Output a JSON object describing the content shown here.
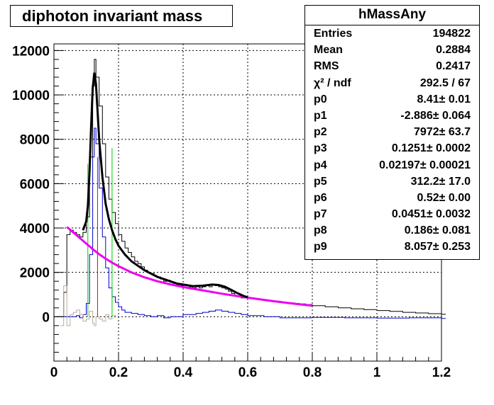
{
  "chart_data": {
    "type": "histogram",
    "title": "diphoton invariant mass",
    "xlim": [
      0,
      1.2
    ],
    "ylim": [
      -2000,
      12300
    ],
    "x_ticks": [
      {
        "v": 0,
        "label": "0"
      },
      {
        "v": 0.2,
        "label": "0.2"
      },
      {
        "v": 0.4,
        "label": "0.4"
      },
      {
        "v": 0.6,
        "label": "0.6"
      },
      {
        "v": 0.8,
        "label": "0.8"
      },
      {
        "v": 1.0,
        "label": "1"
      },
      {
        "v": 1.2,
        "label": "1.2"
      }
    ],
    "y_ticks": [
      {
        "v": 0,
        "label": "0"
      },
      {
        "v": 2000,
        "label": "2000"
      },
      {
        "v": 4000,
        "label": "4000"
      },
      {
        "v": 6000,
        "label": "6000"
      },
      {
        "v": 8000,
        "label": "8000"
      },
      {
        "v": 10000,
        "label": "10000"
      },
      {
        "v": 12000,
        "label": "12000"
      }
    ],
    "grid": true,
    "series": [
      {
        "id": "data-hist",
        "kind": "step",
        "color": "#000000",
        "points": [
          [
            0.01,
            0
          ],
          [
            0.02,
            0
          ],
          [
            0.03,
            1100
          ],
          [
            0.04,
            3700
          ],
          [
            0.05,
            3900
          ],
          [
            0.06,
            3800
          ],
          [
            0.07,
            3700
          ],
          [
            0.08,
            3600
          ],
          [
            0.09,
            3800
          ],
          [
            0.1,
            4500
          ],
          [
            0.11,
            7200
          ],
          [
            0.12,
            10400
          ],
          [
            0.125,
            11600
          ],
          [
            0.13,
            10800
          ],
          [
            0.14,
            9500
          ],
          [
            0.15,
            7800
          ],
          [
            0.16,
            6300
          ],
          [
            0.17,
            5300
          ],
          [
            0.18,
            4700
          ],
          [
            0.19,
            4200
          ],
          [
            0.2,
            3700
          ],
          [
            0.21,
            3400
          ],
          [
            0.22,
            3100
          ],
          [
            0.23,
            2900
          ],
          [
            0.24,
            2700
          ],
          [
            0.25,
            2500
          ],
          [
            0.26,
            2400
          ],
          [
            0.27,
            2250
          ],
          [
            0.28,
            2100
          ],
          [
            0.29,
            2000
          ],
          [
            0.3,
            1950
          ],
          [
            0.31,
            1850
          ],
          [
            0.32,
            1800
          ],
          [
            0.33,
            1700
          ],
          [
            0.34,
            1600
          ],
          [
            0.35,
            1650
          ],
          [
            0.36,
            1550
          ],
          [
            0.37,
            1500
          ],
          [
            0.38,
            1450
          ],
          [
            0.39,
            1400
          ],
          [
            0.4,
            1450
          ],
          [
            0.41,
            1400
          ],
          [
            0.42,
            1350
          ],
          [
            0.43,
            1300
          ],
          [
            0.44,
            1350
          ],
          [
            0.45,
            1300
          ],
          [
            0.46,
            1350
          ],
          [
            0.47,
            1400
          ],
          [
            0.48,
            1350
          ],
          [
            0.49,
            1450
          ],
          [
            0.5,
            1400
          ],
          [
            0.51,
            1350
          ],
          [
            0.52,
            1300
          ],
          [
            0.53,
            1250
          ],
          [
            0.54,
            1150
          ],
          [
            0.55,
            1050
          ],
          [
            0.56,
            950
          ],
          [
            0.57,
            900
          ],
          [
            0.58,
            850
          ],
          [
            0.59,
            850
          ],
          [
            0.6,
            850
          ],
          [
            0.62,
            800
          ],
          [
            0.64,
            750
          ],
          [
            0.66,
            720
          ],
          [
            0.68,
            700
          ],
          [
            0.7,
            650
          ],
          [
            0.72,
            630
          ],
          [
            0.74,
            600
          ],
          [
            0.76,
            580
          ],
          [
            0.78,
            550
          ],
          [
            0.8,
            500
          ],
          [
            0.84,
            450
          ],
          [
            0.88,
            400
          ],
          [
            0.92,
            360
          ],
          [
            0.96,
            320
          ],
          [
            1.0,
            280
          ],
          [
            1.04,
            240
          ],
          [
            1.08,
            200
          ],
          [
            1.12,
            170
          ],
          [
            1.16,
            140
          ],
          [
            1.2,
            110
          ]
        ]
      },
      {
        "id": "signal-hist",
        "kind": "step",
        "color": "#0000cc",
        "points": [
          [
            0.03,
            0
          ],
          [
            0.05,
            0
          ],
          [
            0.07,
            50
          ],
          [
            0.08,
            -50
          ],
          [
            0.09,
            100
          ],
          [
            0.1,
            600
          ],
          [
            0.11,
            2800
          ],
          [
            0.12,
            7200
          ],
          [
            0.125,
            8500
          ],
          [
            0.13,
            7800
          ],
          [
            0.14,
            5800
          ],
          [
            0.15,
            3600
          ],
          [
            0.16,
            2200
          ],
          [
            0.17,
            1300
          ],
          [
            0.18,
            900
          ],
          [
            0.19,
            650
          ],
          [
            0.2,
            450
          ],
          [
            0.21,
            300
          ],
          [
            0.22,
            200
          ],
          [
            0.24,
            150
          ],
          [
            0.26,
            100
          ],
          [
            0.28,
            50
          ],
          [
            0.3,
            0
          ],
          [
            0.32,
            50
          ],
          [
            0.34,
            -50
          ],
          [
            0.36,
            0
          ],
          [
            0.4,
            100
          ],
          [
            0.44,
            150
          ],
          [
            0.46,
            200
          ],
          [
            0.48,
            250
          ],
          [
            0.5,
            300
          ],
          [
            0.52,
            250
          ],
          [
            0.54,
            200
          ],
          [
            0.56,
            150
          ],
          [
            0.58,
            100
          ],
          [
            0.6,
            50
          ],
          [
            0.65,
            0
          ],
          [
            0.7,
            -50
          ],
          [
            0.8,
            -30
          ],
          [
            0.9,
            -50
          ],
          [
            1.0,
            -60
          ],
          [
            1.1,
            -50
          ],
          [
            1.2,
            -80
          ]
        ]
      },
      {
        "id": "residual-hist",
        "kind": "step",
        "color": "#b8ac9c",
        "points": [
          [
            0.02,
            -400
          ],
          [
            0.03,
            1400
          ],
          [
            0.04,
            -400
          ],
          [
            0.05,
            100
          ],
          [
            0.06,
            200
          ],
          [
            0.07,
            300
          ],
          [
            0.08,
            100
          ],
          [
            0.09,
            -200
          ],
          [
            0.1,
            -100
          ],
          [
            0.11,
            250
          ],
          [
            0.12,
            -300
          ],
          [
            0.125,
            -400
          ],
          [
            0.13,
            0
          ],
          [
            0.14,
            -100
          ],
          [
            0.15,
            -200
          ],
          [
            0.16,
            100
          ],
          [
            0.17,
            -100
          ],
          [
            0.18,
            50
          ]
        ]
      }
    ],
    "fit_total": {
      "id": "total-fit",
      "color": "#000000",
      "points": [
        [
          0.09,
          3900
        ],
        [
          0.1,
          4300
        ],
        [
          0.105,
          5000
        ],
        [
          0.11,
          6500
        ],
        [
          0.115,
          8500
        ],
        [
          0.12,
          10300
        ],
        [
          0.125,
          11000
        ],
        [
          0.13,
          10500
        ],
        [
          0.135,
          9300
        ],
        [
          0.14,
          8000
        ],
        [
          0.15,
          6300
        ],
        [
          0.16,
          5100
        ],
        [
          0.17,
          4400
        ],
        [
          0.18,
          3900
        ],
        [
          0.19,
          3500
        ],
        [
          0.2,
          3200
        ],
        [
          0.22,
          2800
        ],
        [
          0.24,
          2500
        ],
        [
          0.26,
          2300
        ],
        [
          0.28,
          2100
        ],
        [
          0.3,
          1950
        ],
        [
          0.32,
          1800
        ],
        [
          0.35,
          1650
        ],
        [
          0.38,
          1500
        ],
        [
          0.4,
          1450
        ],
        [
          0.43,
          1380
        ],
        [
          0.46,
          1400
        ],
        [
          0.49,
          1450
        ],
        [
          0.51,
          1430
        ],
        [
          0.53,
          1350
        ],
        [
          0.55,
          1200
        ],
        [
          0.57,
          1050
        ],
        [
          0.59,
          920
        ],
        [
          0.6,
          880
        ]
      ]
    },
    "fit_background": {
      "id": "background-fit",
      "color": "#ee00ee",
      "points": [
        [
          0.04,
          4050
        ],
        [
          0.06,
          3800
        ],
        [
          0.08,
          3550
        ],
        [
          0.1,
          3300
        ],
        [
          0.12,
          3050
        ],
        [
          0.14,
          2820
        ],
        [
          0.16,
          2620
        ],
        [
          0.18,
          2440
        ],
        [
          0.2,
          2280
        ],
        [
          0.24,
          2000
        ],
        [
          0.28,
          1780
        ],
        [
          0.32,
          1600
        ],
        [
          0.36,
          1460
        ],
        [
          0.4,
          1340
        ],
        [
          0.44,
          1240
        ],
        [
          0.48,
          1140
        ],
        [
          0.52,
          1040
        ],
        [
          0.56,
          950
        ],
        [
          0.6,
          860
        ],
        [
          0.64,
          780
        ],
        [
          0.68,
          700
        ],
        [
          0.72,
          630
        ],
        [
          0.76,
          560
        ],
        [
          0.8,
          500
        ]
      ]
    },
    "markers": [
      {
        "id": "green-line-left",
        "color": "#00cc00",
        "x": 0.105,
        "y_from": 0,
        "y_to": 6900
      },
      {
        "id": "red-line-center",
        "color": "#ee0000",
        "x": 0.135,
        "y_from": 0,
        "y_to": 7200
      },
      {
        "id": "green-line-right",
        "color": "#00cc00",
        "x": 0.18,
        "y_from": 0,
        "y_to": 7600
      }
    ]
  },
  "stats": {
    "title": "hMassAny",
    "rows": [
      {
        "key": "Entries",
        "value": "194822"
      },
      {
        "key": "Mean",
        "value": "0.2884"
      },
      {
        "key": "RMS",
        "value": "0.2417"
      },
      {
        "key": "χ² / ndf",
        "value": "292.5 / 67"
      },
      {
        "key": "p0",
        "value": "8.41± 0.01"
      },
      {
        "key": "p1",
        "value": "-2.886± 0.064"
      },
      {
        "key": "p2",
        "value": "7972± 63.7"
      },
      {
        "key": "p3",
        "value": "0.1251± 0.0002"
      },
      {
        "key": "p4",
        "value": "0.02197± 0.00021"
      },
      {
        "key": "p5",
        "value": "312.2± 17.0"
      },
      {
        "key": "p6",
        "value": "0.52± 0.00"
      },
      {
        "key": "p7",
        "value": "0.0451± 0.0032"
      },
      {
        "key": "p8",
        "value": "0.186± 0.081"
      },
      {
        "key": "p9",
        "value": "8.057± 0.253"
      }
    ]
  }
}
